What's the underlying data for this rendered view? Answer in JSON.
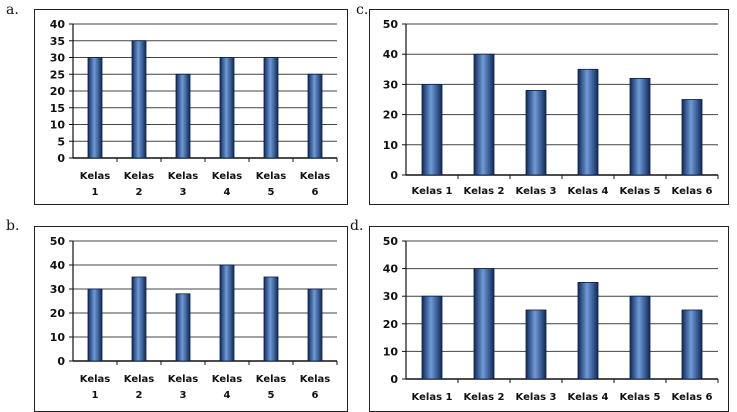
{
  "panels": [
    {
      "letter": "a."
    },
    {
      "letter": "b."
    },
    {
      "letter": "c."
    },
    {
      "letter": "d."
    }
  ],
  "colors": {
    "bar_dark": "#0f2a5c",
    "bar_mid": "#3c68ad",
    "bar_light": "#6f9ad6",
    "grid": "#444444",
    "axis": "#111111"
  },
  "chart_data": [
    {
      "type": "bar",
      "panel": "a.",
      "categories": [
        "Kelas 1",
        "Kelas 2",
        "Kelas 3",
        "Kelas 4",
        "Kelas 5",
        "Kelas 6"
      ],
      "category_lines": [
        [
          "Kelas",
          "1"
        ],
        [
          "Kelas",
          "2"
        ],
        [
          "Kelas",
          "3"
        ],
        [
          "Kelas",
          "4"
        ],
        [
          "Kelas",
          "5"
        ],
        [
          "Kelas",
          "6"
        ]
      ],
      "values": [
        30,
        35,
        25,
        30,
        30,
        25
      ],
      "ylim": [
        0,
        40
      ],
      "yticks": [
        0,
        5,
        10,
        15,
        20,
        25,
        30,
        35,
        40
      ],
      "grid": true,
      "title": "",
      "xlabel": "",
      "ylabel": ""
    },
    {
      "type": "bar",
      "panel": "b.",
      "categories": [
        "Kelas 1",
        "Kelas 2",
        "Kelas 3",
        "Kelas 4",
        "Kelas 5",
        "Kelas 6"
      ],
      "category_lines": [
        [
          "Kelas",
          "1"
        ],
        [
          "Kelas",
          "2"
        ],
        [
          "Kelas",
          "3"
        ],
        [
          "Kelas",
          "4"
        ],
        [
          "Kelas",
          "5"
        ],
        [
          "Kelas",
          "6"
        ]
      ],
      "values": [
        30,
        35,
        28,
        40,
        35,
        30
      ],
      "ylim": [
        0,
        50
      ],
      "yticks": [
        0,
        10,
        20,
        30,
        40,
        50
      ],
      "grid": true,
      "title": "",
      "xlabel": "",
      "ylabel": ""
    },
    {
      "type": "bar",
      "panel": "c.",
      "categories": [
        "Kelas 1",
        "Kelas 2",
        "Kelas 3",
        "Kelas 4",
        "Kelas 5",
        "Kelas 6"
      ],
      "category_lines": [
        [
          "Kelas 1"
        ],
        [
          "Kelas 2"
        ],
        [
          "Kelas 3"
        ],
        [
          "Kelas 4"
        ],
        [
          "Kelas 5"
        ],
        [
          "Kelas 6"
        ]
      ],
      "values": [
        30,
        40,
        28,
        35,
        32,
        25
      ],
      "ylim": [
        0,
        50
      ],
      "yticks": [
        0,
        10,
        20,
        30,
        40,
        50
      ],
      "grid": true,
      "title": "",
      "xlabel": "",
      "ylabel": ""
    },
    {
      "type": "bar",
      "panel": "d.",
      "categories": [
        "Kelas 1",
        "Kelas 2",
        "Kelas 3",
        "Kelas 4",
        "Kelas 5",
        "Kelas 6"
      ],
      "category_lines": [
        [
          "Kelas 1"
        ],
        [
          "Kelas 2"
        ],
        [
          "Kelas 3"
        ],
        [
          "Kelas 4"
        ],
        [
          "Kelas 5"
        ],
        [
          "Kelas 6"
        ]
      ],
      "values": [
        30,
        40,
        25,
        35,
        30,
        25
      ],
      "ylim": [
        0,
        50
      ],
      "yticks": [
        0,
        10,
        20,
        30,
        40,
        50
      ],
      "grid": true,
      "title": "",
      "xlabel": "",
      "ylabel": ""
    }
  ]
}
